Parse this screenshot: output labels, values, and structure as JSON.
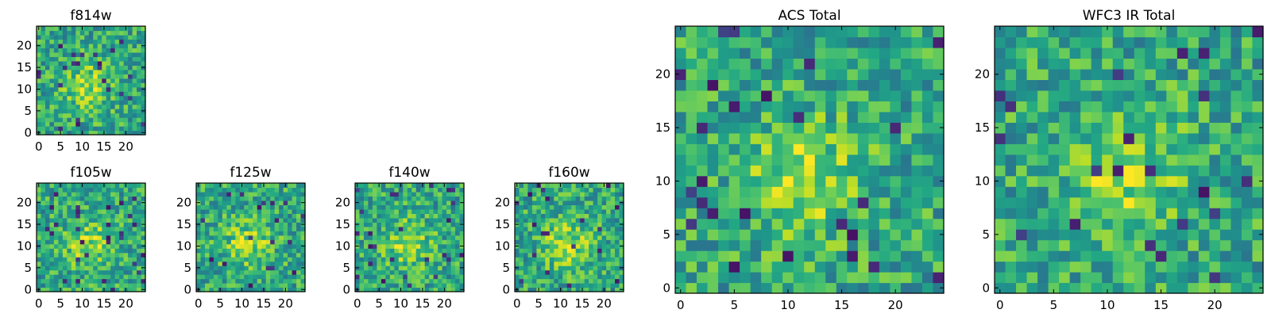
{
  "chart_data": [
    {
      "type": "heatmap",
      "title": "f814w",
      "xlabel": "",
      "ylabel": "",
      "grid_size": 25,
      "colormap": "viridis",
      "xlim": [
        -0.5,
        24.5
      ],
      "ylim": [
        -0.5,
        24.5
      ],
      "xticks": [
        0,
        5,
        10,
        15,
        20
      ],
      "yticks": [
        0,
        5,
        10,
        15,
        20
      ],
      "grid": false,
      "brightness": "bright yellow-green core around (10, 11), noisy background",
      "values_seed": 814
    },
    {
      "type": "heatmap",
      "title": "f105w",
      "xlabel": "",
      "ylabel": "",
      "grid_size": 25,
      "colormap": "viridis",
      "xlim": [
        -0.5,
        24.5
      ],
      "ylim": [
        -0.5,
        24.5
      ],
      "xticks": [
        0,
        5,
        10,
        15,
        20
      ],
      "yticks": [
        0,
        5,
        10,
        15,
        20
      ],
      "grid": false,
      "values_seed": 105
    },
    {
      "type": "heatmap",
      "title": "f125w",
      "xlabel": "",
      "ylabel": "",
      "grid_size": 25,
      "colormap": "viridis",
      "xlim": [
        -0.5,
        24.5
      ],
      "ylim": [
        -0.5,
        24.5
      ],
      "xticks": [
        0,
        5,
        10,
        15,
        20
      ],
      "yticks": [
        0,
        5,
        10,
        15,
        20
      ],
      "grid": false,
      "values_seed": 125
    },
    {
      "type": "heatmap",
      "title": "f140w",
      "xlabel": "",
      "ylabel": "",
      "grid_size": 25,
      "colormap": "viridis",
      "xlim": [
        -0.5,
        24.5
      ],
      "ylim": [
        -0.5,
        24.5
      ],
      "xticks": [
        0,
        5,
        10,
        15,
        20
      ],
      "yticks": [
        0,
        5,
        10,
        15,
        20
      ],
      "grid": false,
      "values_seed": 140
    },
    {
      "type": "heatmap",
      "title": "f160w",
      "xlabel": "",
      "ylabel": "",
      "grid_size": 25,
      "colormap": "viridis",
      "xlim": [
        -0.5,
        24.5
      ],
      "ylim": [
        -0.5,
        24.5
      ],
      "xticks": [
        0,
        5,
        10,
        15,
        20
      ],
      "yticks": [
        0,
        5,
        10,
        15,
        20
      ],
      "grid": false,
      "values_seed": 160
    },
    {
      "type": "heatmap",
      "title": "ACS Total",
      "xlabel": "",
      "ylabel": "",
      "grid_size": 25,
      "colormap": "viridis",
      "xlim": [
        -0.5,
        24.5
      ],
      "ylim": [
        -0.5,
        24.5
      ],
      "xticks": [
        0,
        5,
        10,
        15,
        20
      ],
      "yticks": [
        0,
        5,
        10,
        15,
        20
      ],
      "grid": false,
      "values_seed": 7
    },
    {
      "type": "heatmap",
      "title": "WFC3 IR Total",
      "xlabel": "",
      "ylabel": "",
      "grid_size": 25,
      "colormap": "viridis",
      "xlim": [
        -0.5,
        24.5
      ],
      "ylim": [
        -0.5,
        24.5
      ],
      "xticks": [
        0,
        5,
        10,
        15,
        20
      ],
      "yticks": [
        0,
        5,
        10,
        15,
        20
      ],
      "grid": false,
      "values_seed": 33
    }
  ]
}
